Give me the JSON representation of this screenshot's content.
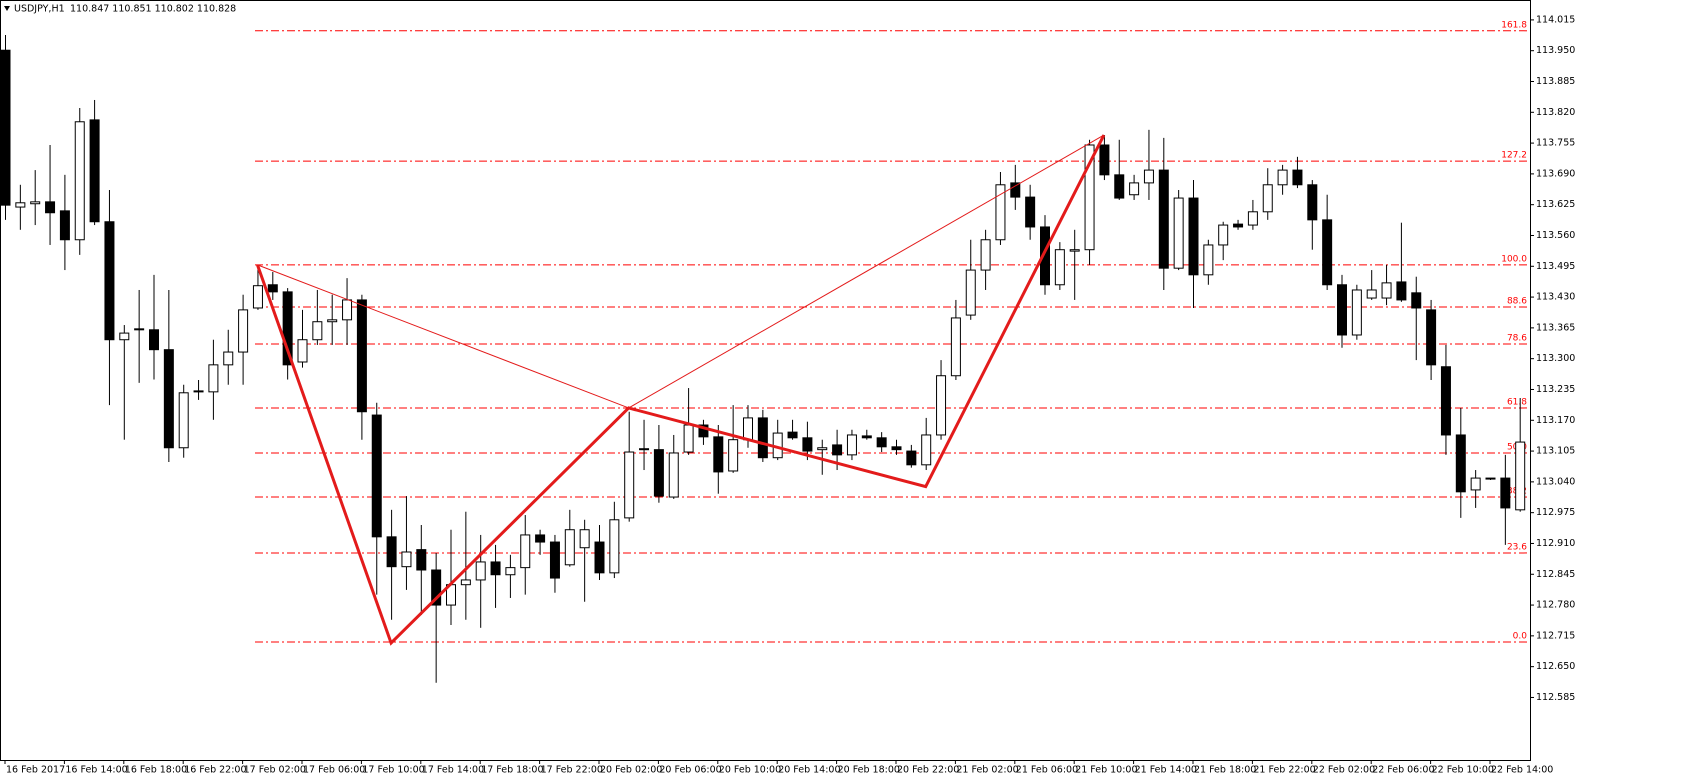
{
  "chart_data": {
    "type": "candlestick",
    "title": "USDJPY,H1",
    "subtitle": "110.847 110.851 110.802 110.828",
    "bull_color": "#ffffff",
    "bear_color": "#000000",
    "categories": [
      "16 Feb 2017",
      null,
      null,
      null,
      "16 Feb 14:00",
      null,
      null,
      null,
      "16 Feb 18:00",
      null,
      null,
      null,
      "16 Feb 22:00",
      null,
      null,
      null,
      "17 Feb 02:00",
      null,
      null,
      null,
      "17 Feb 06:00",
      null,
      null,
      null,
      "17 Feb 10:00",
      null,
      null,
      null,
      "17 Feb 14:00",
      null,
      null,
      null,
      "17 Feb 18:00",
      null,
      null,
      null,
      "17 Feb 22:00",
      null,
      null,
      null,
      "20 Feb 02:00",
      null,
      null,
      null,
      "20 Feb 06:00",
      null,
      null,
      null,
      "20 Feb 10:00",
      null,
      null,
      null,
      "20 Feb 14:00",
      null,
      null,
      null,
      "20 Feb 18:00",
      null,
      null,
      null,
      "20 Feb 22:00",
      null,
      null,
      null,
      "21 Feb 02:00",
      null,
      null,
      null,
      "21 Feb 06:00",
      null,
      null,
      null,
      "21 Feb 10:00",
      null,
      null,
      null,
      "21 Feb 14:00",
      null,
      null,
      null,
      "21 Feb 18:00",
      null,
      null,
      null,
      "21 Feb 22:00",
      null,
      null,
      null,
      "22 Feb 02:00",
      null,
      null,
      null,
      "22 Feb 06:00",
      null,
      null,
      null,
      "22 Feb 10:00",
      null,
      null,
      null,
      "22 Feb 14:00",
      null,
      null
    ],
    "open": [
      113.951,
      113.62,
      113.627,
      113.631,
      113.612,
      113.551,
      113.804,
      113.589,
      113.34,
      113.361,
      113.361,
      113.319,
      113.112,
      113.23,
      113.23,
      113.287,
      113.314,
      113.407,
      113.456,
      113.441,
      113.293,
      113.34,
      113.378,
      113.382,
      113.424,
      113.181,
      112.924,
      112.861,
      112.897,
      112.854,
      112.78,
      112.823,
      112.833,
      112.871,
      112.844,
      112.859,
      112.928,
      112.913,
      112.865,
      112.901,
      112.913,
      112.848,
      112.964,
      113.108,
      113.108,
      113.008,
      113.103,
      113.16,
      113.135,
      113.063,
      113.129,
      113.175,
      113.091,
      113.145,
      113.133,
      113.108,
      113.118,
      113.097,
      113.137,
      113.133,
      113.114,
      113.105,
      113.076,
      113.139,
      113.264,
      113.392,
      113.487,
      113.551,
      113.671,
      113.641,
      113.578,
      113.456,
      113.527,
      113.53,
      113.751,
      113.688,
      113.646,
      113.671,
      113.698,
      113.491,
      113.639,
      113.477,
      113.54,
      113.584,
      113.582,
      113.61,
      113.667,
      113.698,
      113.667,
      113.593,
      113.456,
      113.35,
      113.428,
      113.428,
      113.462,
      113.439,
      113.403,
      113.283,
      113.139,
      113.023,
      113.048,
      113.048,
      112.981
    ],
    "high": [
      113.983,
      113.667,
      113.698,
      113.751,
      113.688,
      113.829,
      113.846,
      113.656,
      113.371,
      113.445,
      113.477,
      113.445,
      113.245,
      113.255,
      113.34,
      113.361,
      113.435,
      113.498,
      113.483,
      113.449,
      113.403,
      113.445,
      113.435,
      113.47,
      113.435,
      113.207,
      112.981,
      113.01,
      112.949,
      112.89,
      112.939,
      112.977,
      112.928,
      112.907,
      112.886,
      112.97,
      112.939,
      112.928,
      112.981,
      112.96,
      112.949,
      112.998,
      113.188,
      113.171,
      113.16,
      113.139,
      113.238,
      113.171,
      113.16,
      113.202,
      113.202,
      113.192,
      113.171,
      113.171,
      113.167,
      113.129,
      113.15,
      113.15,
      113.15,
      113.145,
      113.129,
      113.118,
      113.175,
      113.297,
      113.424,
      113.551,
      113.572,
      113.694,
      113.709,
      113.667,
      113.603,
      113.546,
      113.572,
      113.762,
      113.772,
      113.762,
      113.688,
      113.783,
      113.766,
      113.656,
      113.677,
      113.551,
      113.589,
      113.593,
      113.635,
      113.702,
      113.709,
      113.726,
      113.677,
      113.646,
      113.477,
      113.456,
      113.487,
      113.498,
      113.587,
      113.473,
      113.424,
      113.329,
      113.196,
      113.065,
      113.048,
      113.097,
      113.217
    ],
    "low": [
      113.593,
      113.572,
      113.582,
      113.54,
      113.487,
      113.519,
      113.582,
      113.202,
      113.129,
      113.249,
      113.256,
      113.082,
      113.091,
      113.213,
      113.171,
      113.245,
      113.245,
      113.403,
      113.424,
      113.256,
      113.281,
      113.329,
      113.329,
      113.329,
      113.129,
      112.802,
      112.749,
      112.812,
      112.759,
      112.616,
      112.738,
      112.749,
      112.732,
      112.774,
      112.795,
      112.802,
      112.886,
      112.806,
      112.861,
      112.787,
      112.833,
      112.837,
      112.956,
      113.065,
      112.996,
      113.004,
      113.097,
      113.118,
      113.015,
      113.059,
      113.112,
      113.082,
      113.086,
      113.129,
      113.086,
      113.055,
      113.065,
      113.086,
      113.129,
      113.103,
      113.097,
      113.07,
      113.065,
      113.129,
      113.255,
      113.382,
      113.445,
      113.54,
      113.614,
      113.551,
      113.435,
      113.445,
      113.424,
      113.498,
      113.677,
      113.635,
      113.635,
      113.635,
      113.445,
      113.487,
      113.407,
      113.456,
      113.508,
      113.572,
      113.572,
      113.593,
      113.646,
      113.66,
      113.53,
      113.445,
      113.323,
      113.34,
      113.424,
      113.413,
      113.42,
      113.297,
      113.255,
      113.097,
      112.964,
      112.985,
      113.044,
      112.907,
      112.977
    ],
    "close": [
      113.624,
      113.629,
      113.631,
      113.608,
      113.551,
      113.8,
      113.589,
      113.34,
      113.354,
      113.363,
      113.319,
      113.112,
      113.228,
      113.232,
      113.287,
      113.314,
      113.403,
      113.454,
      113.441,
      113.287,
      113.34,
      113.378,
      113.382,
      113.424,
      113.188,
      112.924,
      112.861,
      112.892,
      112.854,
      112.78,
      112.823,
      112.833,
      112.871,
      112.844,
      112.859,
      112.928,
      112.913,
      112.837,
      112.939,
      112.939,
      112.848,
      112.96,
      113.103,
      113.11,
      113.01,
      113.101,
      113.16,
      113.135,
      113.061,
      113.129,
      113.175,
      113.091,
      113.143,
      113.133,
      113.105,
      113.112,
      113.097,
      113.139,
      113.133,
      113.114,
      113.108,
      113.076,
      113.139,
      113.264,
      113.386,
      113.487,
      113.551,
      113.667,
      113.641,
      113.578,
      113.456,
      113.53,
      113.53,
      113.751,
      113.688,
      113.639,
      113.671,
      113.698,
      113.491,
      113.639,
      113.477,
      113.54,
      113.582,
      113.578,
      113.61,
      113.667,
      113.698,
      113.667,
      113.593,
      113.456,
      113.35,
      113.445,
      113.445,
      113.46,
      113.424,
      113.407,
      113.287,
      113.139,
      113.019,
      113.048,
      113.046,
      112.985,
      113.124
    ],
    "ylim": [
      112.453,
      114.057
    ],
    "yticks": [
      114.015,
      {
        "value": 113.95,
        "label": "113.950"
      },
      113.885,
      {
        "value": 113.82,
        "label": "113.820"
      },
      113.755,
      {
        "value": 113.69,
        "label": "113.690"
      },
      113.625,
      {
        "value": 113.56,
        "label": "113.560"
      },
      113.495,
      {
        "value": 113.43,
        "label": "113.430"
      },
      113.365,
      {
        "value": 113.3,
        "label": "113.300"
      },
      113.235,
      {
        "value": 113.17,
        "label": "113.170"
      },
      113.105,
      {
        "value": 113.04,
        "label": "113.040"
      },
      112.975,
      {
        "value": 112.91,
        "label": "112.910"
      },
      112.845,
      {
        "value": 112.78,
        "label": "112.780"
      },
      112.715,
      {
        "value": 112.65,
        "label": "112.650"
      },
      112.585
    ],
    "fib_color": "#ff0000",
    "fib_levels": [
      {
        "value": 113.992,
        "label": "161.8"
      },
      {
        "value": 113.717,
        "label": "127.2"
      },
      {
        "value": 113.498,
        "label": "100.0"
      },
      {
        "value": 113.409,
        "label": "88.6"
      },
      {
        "value": 113.331,
        "label": "78.6"
      },
      {
        "value": 113.196,
        "label": "61.8"
      },
      {
        "value": 113.101,
        "label": "50.0"
      },
      {
        "value": 113.008,
        "label": "38.2"
      },
      {
        "value": 112.89,
        "label": "23.6"
      },
      {
        "value": 112.702,
        "label": "0.0"
      }
    ],
    "pattern": {
      "color": "#e31b1b",
      "indices": [
        17,
        26,
        42,
        62,
        74
      ],
      "prices": [
        113.498,
        112.7,
        113.196,
        113.03,
        113.772
      ]
    }
  }
}
